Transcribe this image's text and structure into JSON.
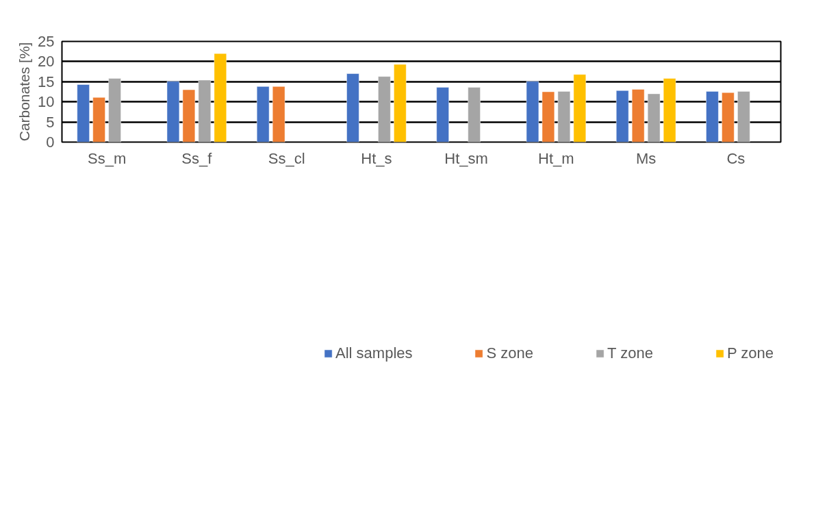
{
  "chart_data": {
    "type": "bar",
    "ylabel": "Carbonates [%]",
    "categories": [
      "Ss_m",
      "Ss_f",
      "Ss_cl",
      "Ht_s",
      "Ht_sm",
      "Ht_m",
      "Ms",
      "Cs"
    ],
    "series": [
      {
        "name": "All samples",
        "color": "#4472c4",
        "values": [
          14.3,
          15.1,
          13.8,
          17.0,
          13.6,
          15.1,
          12.8,
          12.6
        ]
      },
      {
        "name": "S zone",
        "color": "#ed7d31",
        "values": [
          11.1,
          13.0,
          13.8,
          null,
          null,
          12.5,
          13.1,
          12.3
        ]
      },
      {
        "name": "T zone",
        "color": "#a5a5a5",
        "values": [
          15.8,
          15.4,
          null,
          16.3,
          13.6,
          12.6,
          12.0,
          12.6
        ]
      },
      {
        "name": "P zone",
        "color": "#ffc000",
        "values": [
          null,
          22.0,
          null,
          19.3,
          null,
          16.8,
          15.8,
          null
        ]
      }
    ],
    "ylim": [
      0,
      25
    ],
    "yticks": [
      0,
      5,
      10,
      15,
      20,
      25
    ],
    "grid": "y",
    "legend": "bottom"
  }
}
